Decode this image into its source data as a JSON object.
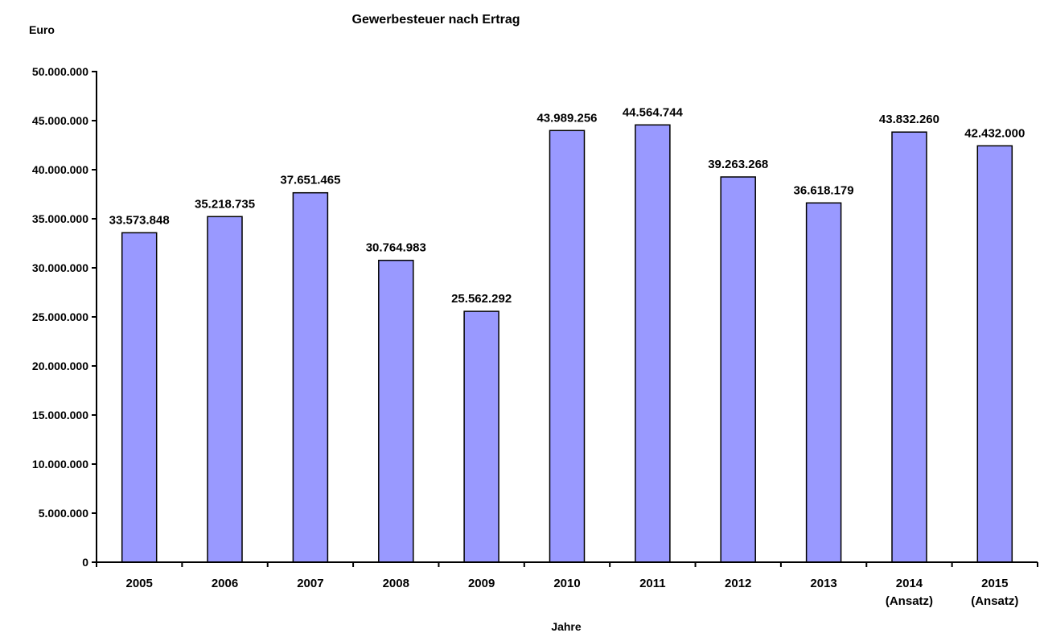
{
  "chart_data": {
    "type": "bar",
    "title": "Gewerbesteuer nach Ertrag",
    "ylabel": "Euro",
    "xlabel": "Jahre",
    "categories": [
      [
        "2005"
      ],
      [
        "2006"
      ],
      [
        "2007"
      ],
      [
        "2008"
      ],
      [
        "2009"
      ],
      [
        "2010"
      ],
      [
        "2011"
      ],
      [
        "2012"
      ],
      [
        "2013"
      ],
      [
        "2014",
        "(Ansatz)"
      ],
      [
        "2015",
        "(Ansatz)"
      ]
    ],
    "values": [
      33573848,
      35218735,
      37651465,
      30764983,
      25562292,
      43989256,
      44564744,
      39263268,
      36618179,
      43832260,
      42432000
    ],
    "value_labels": [
      "33.573.848",
      "35.218.735",
      "37.651.465",
      "30.764.983",
      "25.562.292",
      "43.989.256",
      "44.564.744",
      "39.263.268",
      "36.618.179",
      "43.832.260",
      "42.432.000"
    ],
    "ylim": [
      0,
      50000000
    ],
    "yticks": [
      0,
      5000000,
      10000000,
      15000000,
      20000000,
      25000000,
      30000000,
      35000000,
      40000000,
      45000000,
      50000000
    ],
    "ytick_labels": [
      "0",
      "5.000.000",
      "10.000.000",
      "15.000.000",
      "20.000.000",
      "25.000.000",
      "30.000.000",
      "35.000.000",
      "40.000.000",
      "45.000.000",
      "50.000.000"
    ],
    "grid": false,
    "legend": "none",
    "colors": {
      "bar_fill": "#9999ff",
      "bar_stroke": "#000000",
      "axis": "#000000"
    }
  }
}
